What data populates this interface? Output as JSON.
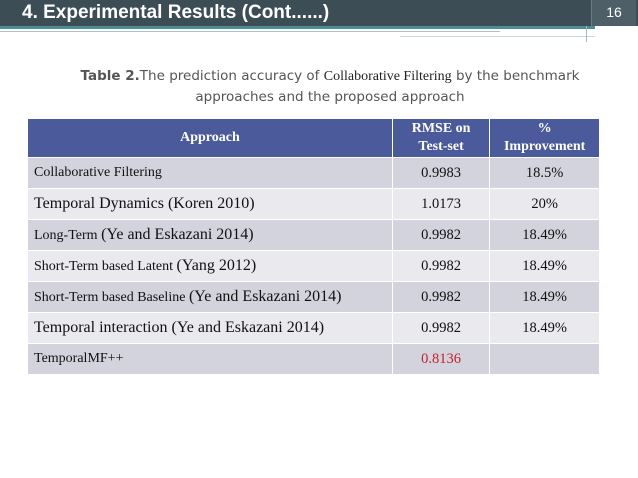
{
  "slide": {
    "title": "4. Experimental Results (Cont......)",
    "number": "16"
  },
  "caption": {
    "label": "Table 2.",
    "text_before": "The prediction accuracy of ",
    "method": "Collaborative Filtering",
    "text_after": " by the benchmark approaches and the proposed approach"
  },
  "table": {
    "headers": {
      "approach": "Approach",
      "rmse_line1": "RMSE on",
      "rmse_line2": "Test-set",
      "improvement_line1": "%",
      "improvement_line2": "Improvement"
    },
    "rows": [
      {
        "name": "Collaborative Filtering",
        "ref": "",
        "rmse": "0.9983",
        "improvement": "18.5%"
      },
      {
        "name": "Temporal Dynamics (Koren 2010)",
        "ref": "",
        "rmse": "1.0173",
        "improvement": "20%"
      },
      {
        "name": "Long-Term ",
        "ref": "(Ye and Eskazani 2014)",
        "rmse": "0.9982",
        "improvement": "18.49%"
      },
      {
        "name": "Short-Term based Latent ",
        "ref": "(Yang 2012)",
        "rmse": "0.9982",
        "improvement": "18.49%"
      },
      {
        "name": "Short-Term based Baseline ",
        "ref": "(Ye and Eskazani 2014)",
        "rmse": "0.9982",
        "improvement": "18.49%"
      },
      {
        "name": "Temporal interaction (Ye and Eskazani 2014)",
        "ref": "",
        "rmse": "0.9982",
        "improvement": "18.49%"
      },
      {
        "name": "TemporalMF++",
        "ref": "",
        "rmse": "0.8136",
        "improvement": ""
      }
    ]
  },
  "colors": {
    "header_bar": "#3c4d56",
    "table_header": "#4a5a9a",
    "highlight_value": "#c0222c"
  }
}
